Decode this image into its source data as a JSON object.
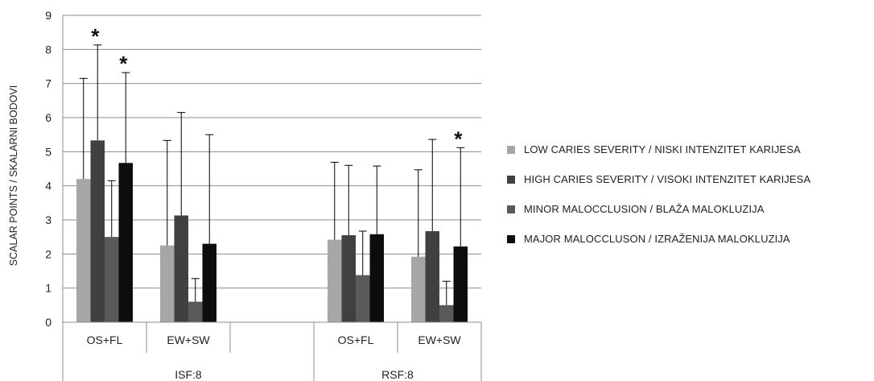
{
  "chart_data": {
    "type": "bar",
    "ylabel": "SCALAR POINTS / SKALARNI BODOVI",
    "ylim": [
      0,
      9
    ],
    "yticks": [
      0,
      1,
      2,
      3,
      4,
      5,
      6,
      7,
      8,
      9
    ],
    "grid": true,
    "legend_position": "right",
    "categories": [
      "OS+FL",
      "EW+SW",
      "",
      "OS+FL",
      "EW+SW"
    ],
    "groups": [
      {
        "label": "ISF:8",
        "span": 3
      },
      {
        "label": "RSF:8",
        "span": 2
      }
    ],
    "series": [
      {
        "name": "LOW CARIES SEVERITY / NISKI INTENZITET KARIJESA",
        "color": "#a6a6a6",
        "values": [
          4.2,
          2.25,
          null,
          2.42,
          1.92
        ],
        "errors": [
          2.95,
          3.08,
          null,
          2.27,
          2.55
        ]
      },
      {
        "name": "HIGH CARIES SEVERITY / VISOKI INTENZITET KARIJESA",
        "color": "#404040",
        "values": [
          5.33,
          3.13,
          null,
          2.55,
          2.67
        ],
        "errors": [
          2.8,
          3.02,
          null,
          2.05,
          2.69
        ]
      },
      {
        "name": "MINOR MALOCCLUSION / BLAŽA MALOKLUZIJA",
        "color": "#595959",
        "values": [
          2.5,
          0.6,
          null,
          1.38,
          0.5
        ],
        "errors": [
          1.65,
          0.68,
          null,
          1.29,
          0.7
        ]
      },
      {
        "name": "MAJOR MALOCCLUSON / IZRAŽENIJA MALOKLUZIJA",
        "color": "#0d0d0d",
        "values": [
          4.67,
          2.3,
          null,
          2.58,
          2.22
        ],
        "errors": [
          2.65,
          3.2,
          null,
          2.0,
          2.9
        ]
      }
    ],
    "annotations": [
      {
        "text": "*",
        "category_index": 0,
        "series_index": 1
      },
      {
        "text": "*",
        "category_index": 0,
        "series_index": 3
      },
      {
        "text": "*",
        "category_index": 4,
        "series_index": 3
      }
    ]
  }
}
